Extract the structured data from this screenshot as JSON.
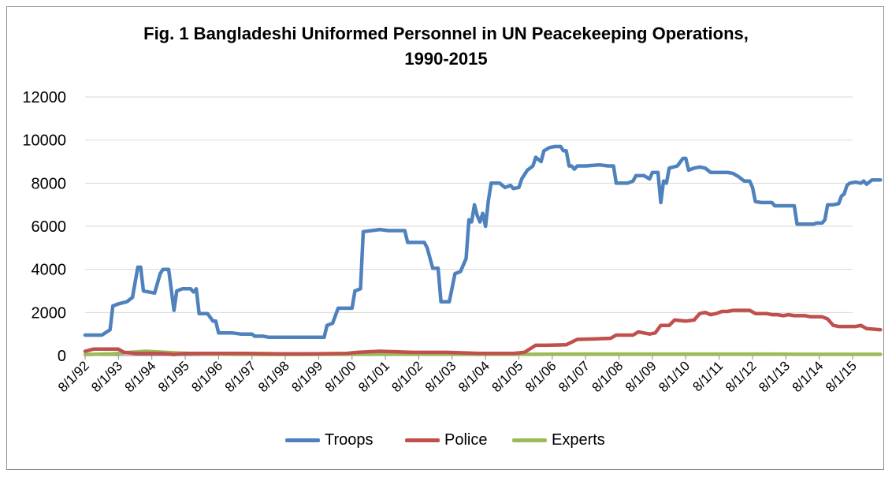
{
  "title_line1": "Fig. 1 Bangladeshi Uniformed Personnel in UN Peacekeeping Operations,",
  "title_line2": "1990-2015",
  "chart_data": {
    "type": "line",
    "title": "Fig. 1 Bangladeshi Uniformed Personnel in UN Peacekeeping Operations, 1990-2015",
    "xlabel": "",
    "ylabel": "",
    "ylim": [
      0,
      12000
    ],
    "yticks": [
      0,
      2000,
      4000,
      6000,
      8000,
      10000,
      12000
    ],
    "ytick_labels": [
      "0",
      "2000",
      "4000",
      "6000",
      "8000",
      "10000",
      "12000"
    ],
    "xlim": [
      "1992-08-01",
      "2015-08-01"
    ],
    "xtick_labels": [
      "8/1/92",
      "8/1/93",
      "8/1/94",
      "8/1/95",
      "8/1/96",
      "8/1/97",
      "8/1/98",
      "8/1/99",
      "8/1/00",
      "8/1/01",
      "8/1/02",
      "8/1/03",
      "8/1/04",
      "8/1/05",
      "8/1/06",
      "8/1/07",
      "8/1/08",
      "8/1/09",
      "8/1/10",
      "8/1/11",
      "8/1/12",
      "8/1/13",
      "8/1/14",
      "8/1/15"
    ],
    "grid": "horizontal",
    "legend_position": "bottom",
    "series": [
      {
        "name": "Troops",
        "color": "#4f81bd",
        "points": [
          [
            "1992-08-01",
            950
          ],
          [
            "1993-02-01",
            950
          ],
          [
            "1993-05-01",
            1200
          ],
          [
            "1993-06-01",
            2300
          ],
          [
            "1993-08-01",
            2400
          ],
          [
            "1993-11-01",
            2500
          ],
          [
            "1994-01-01",
            2700
          ],
          [
            "1994-03-01",
            4100
          ],
          [
            "1994-04-01",
            4100
          ],
          [
            "1994-05-01",
            3000
          ],
          [
            "1994-07-01",
            2950
          ],
          [
            "1994-09-01",
            2900
          ],
          [
            "1994-11-01",
            3800
          ],
          [
            "1994-12-01",
            4000
          ],
          [
            "1995-02-01",
            4000
          ],
          [
            "1995-04-01",
            2100
          ],
          [
            "1995-05-01",
            3000
          ],
          [
            "1995-07-01",
            3100
          ],
          [
            "1995-10-01",
            3100
          ],
          [
            "1995-11-01",
            2950
          ],
          [
            "1995-12-01",
            3100
          ],
          [
            "1996-01-01",
            1950
          ],
          [
            "1996-04-01",
            1950
          ],
          [
            "1996-06-01",
            1600
          ],
          [
            "1996-07-01",
            1600
          ],
          [
            "1996-08-01",
            1050
          ],
          [
            "1997-01-01",
            1050
          ],
          [
            "1997-04-01",
            1000
          ],
          [
            "1997-08-01",
            1000
          ],
          [
            "1997-09-01",
            900
          ],
          [
            "1997-12-01",
            900
          ],
          [
            "1998-02-01",
            850
          ],
          [
            "1998-06-01",
            850
          ],
          [
            "1998-11-01",
            850
          ],
          [
            "1999-08-01",
            850
          ],
          [
            "1999-10-01",
            850
          ],
          [
            "1999-11-01",
            1400
          ],
          [
            "2000-01-01",
            1500
          ],
          [
            "2000-03-01",
            2200
          ],
          [
            "2000-06-01",
            2200
          ],
          [
            "2000-08-01",
            2200
          ],
          [
            "2000-09-01",
            3000
          ],
          [
            "2000-11-01",
            3100
          ],
          [
            "2000-12-01",
            5750
          ],
          [
            "2001-03-01",
            5800
          ],
          [
            "2001-06-01",
            5850
          ],
          [
            "2001-09-01",
            5800
          ],
          [
            "2002-01-01",
            5800
          ],
          [
            "2002-03-01",
            5800
          ],
          [
            "2002-04-01",
            5250
          ],
          [
            "2002-08-01",
            5250
          ],
          [
            "2002-10-01",
            5250
          ],
          [
            "2002-11-01",
            5000
          ],
          [
            "2003-01-01",
            4050
          ],
          [
            "2003-03-01",
            4050
          ],
          [
            "2003-04-01",
            2500
          ],
          [
            "2003-06-01",
            2500
          ],
          [
            "2003-07-01",
            2500
          ],
          [
            "2003-09-01",
            3800
          ],
          [
            "2003-11-01",
            3900
          ],
          [
            "2004-01-01",
            4500
          ],
          [
            "2004-02-01",
            6300
          ],
          [
            "2004-03-01",
            6200
          ],
          [
            "2004-04-01",
            7000
          ],
          [
            "2004-05-01",
            6500
          ],
          [
            "2004-06-01",
            6200
          ],
          [
            "2004-07-01",
            6600
          ],
          [
            "2004-08-01",
            6000
          ],
          [
            "2004-09-01",
            7200
          ],
          [
            "2004-10-01",
            8000
          ],
          [
            "2005-01-01",
            8000
          ],
          [
            "2005-03-01",
            7800
          ],
          [
            "2005-05-01",
            7900
          ],
          [
            "2005-06-01",
            7750
          ],
          [
            "2005-08-01",
            7800
          ],
          [
            "2005-09-01",
            8200
          ],
          [
            "2005-11-01",
            8600
          ],
          [
            "2006-01-01",
            8800
          ],
          [
            "2006-02-01",
            9200
          ],
          [
            "2006-04-01",
            9000
          ],
          [
            "2006-05-01",
            9500
          ],
          [
            "2006-07-01",
            9650
          ],
          [
            "2006-09-01",
            9700
          ],
          [
            "2006-11-01",
            9700
          ],
          [
            "2006-12-01",
            9500
          ],
          [
            "2007-01-01",
            9500
          ],
          [
            "2007-02-01",
            8800
          ],
          [
            "2007-03-01",
            8800
          ],
          [
            "2007-04-01",
            8650
          ],
          [
            "2007-05-01",
            8800
          ],
          [
            "2007-08-01",
            8800
          ],
          [
            "2008-01-01",
            8850
          ],
          [
            "2008-04-01",
            8800
          ],
          [
            "2008-06-01",
            8800
          ],
          [
            "2008-07-01",
            8000
          ],
          [
            "2008-09-01",
            8000
          ],
          [
            "2008-11-01",
            8000
          ],
          [
            "2009-01-01",
            8100
          ],
          [
            "2009-02-01",
            8350
          ],
          [
            "2009-05-01",
            8350
          ],
          [
            "2009-07-01",
            8200
          ],
          [
            "2009-08-01",
            8500
          ],
          [
            "2009-10-01",
            8500
          ],
          [
            "2009-11-01",
            7100
          ],
          [
            "2009-12-01",
            8100
          ],
          [
            "2010-01-01",
            8000
          ],
          [
            "2010-02-01",
            8700
          ],
          [
            "2010-05-01",
            8800
          ],
          [
            "2010-07-01",
            9150
          ],
          [
            "2010-08-01",
            9150
          ],
          [
            "2010-09-01",
            8600
          ],
          [
            "2010-11-01",
            8700
          ],
          [
            "2011-01-01",
            8750
          ],
          [
            "2011-03-01",
            8700
          ],
          [
            "2011-05-01",
            8500
          ],
          [
            "2011-07-01",
            8500
          ],
          [
            "2011-09-01",
            8500
          ],
          [
            "2011-11-01",
            8500
          ],
          [
            "2012-01-01",
            8450
          ],
          [
            "2012-03-01",
            8300
          ],
          [
            "2012-05-01",
            8100
          ],
          [
            "2012-07-01",
            8100
          ],
          [
            "2012-08-01",
            7800
          ],
          [
            "2012-09-01",
            7150
          ],
          [
            "2012-11-01",
            7100
          ],
          [
            "2013-01-01",
            7100
          ],
          [
            "2013-03-01",
            7100
          ],
          [
            "2013-04-01",
            6950
          ],
          [
            "2013-06-01",
            6950
          ],
          [
            "2013-09-01",
            6950
          ],
          [
            "2013-11-01",
            6950
          ],
          [
            "2013-12-01",
            6100
          ],
          [
            "2014-03-01",
            6100
          ],
          [
            "2014-06-01",
            6100
          ],
          [
            "2014-07-01",
            6150
          ],
          [
            "2014-09-01",
            6150
          ],
          [
            "2014-10-01",
            6300
          ],
          [
            "2014-11-01",
            7000
          ],
          [
            "2015-01-01",
            7000
          ],
          [
            "2015-03-01",
            7050
          ],
          [
            "2015-04-01",
            7400
          ],
          [
            "2015-05-01",
            7500
          ],
          [
            "2015-06-01",
            7900
          ],
          [
            "2015-07-01",
            8000
          ],
          [
            "2015-09-01",
            8050
          ],
          [
            "2015-11-01",
            8000
          ],
          [
            "2015-12-01",
            8100
          ],
          [
            "2016-01-01",
            7950
          ],
          [
            "2016-03-01",
            8150
          ],
          [
            "2016-06-01",
            8150
          ]
        ]
      },
      {
        "name": "Police",
        "color": "#c0504d",
        "points": [
          [
            "1992-08-01",
            200
          ],
          [
            "1992-11-01",
            300
          ],
          [
            "1993-05-01",
            300
          ],
          [
            "1993-08-01",
            300
          ],
          [
            "1993-10-01",
            150
          ],
          [
            "1994-02-01",
            100
          ],
          [
            "1994-06-01",
            100
          ],
          [
            "1994-12-01",
            100
          ],
          [
            "1995-04-01",
            50
          ],
          [
            "1995-08-01",
            100
          ],
          [
            "1995-12-01",
            100
          ],
          [
            "1996-06-01",
            100
          ],
          [
            "1997-06-01",
            100
          ],
          [
            "1998-06-01",
            80
          ],
          [
            "1999-06-01",
            80
          ],
          [
            "2000-06-01",
            100
          ],
          [
            "2000-10-01",
            150
          ],
          [
            "2001-06-01",
            200
          ],
          [
            "2002-06-01",
            150
          ],
          [
            "2003-06-01",
            150
          ],
          [
            "2004-06-01",
            100
          ],
          [
            "2005-06-01",
            100
          ],
          [
            "2005-10-01",
            150
          ],
          [
            "2006-02-01",
            480
          ],
          [
            "2006-06-01",
            480
          ],
          [
            "2007-01-01",
            500
          ],
          [
            "2007-05-01",
            750
          ],
          [
            "2007-12-01",
            780
          ],
          [
            "2008-05-01",
            800
          ],
          [
            "2008-07-01",
            950
          ],
          [
            "2009-01-01",
            950
          ],
          [
            "2009-03-01",
            1100
          ],
          [
            "2009-05-01",
            1050
          ],
          [
            "2009-07-01",
            1000
          ],
          [
            "2009-09-01",
            1050
          ],
          [
            "2009-11-01",
            1400
          ],
          [
            "2010-02-01",
            1400
          ],
          [
            "2010-04-01",
            1650
          ],
          [
            "2010-08-01",
            1600
          ],
          [
            "2010-11-01",
            1650
          ],
          [
            "2011-01-01",
            1950
          ],
          [
            "2011-03-01",
            2000
          ],
          [
            "2011-05-01",
            1900
          ],
          [
            "2011-07-01",
            1950
          ],
          [
            "2011-09-01",
            2050
          ],
          [
            "2011-11-01",
            2050
          ],
          [
            "2012-01-01",
            2100
          ],
          [
            "2012-03-01",
            2100
          ],
          [
            "2012-05-01",
            2100
          ],
          [
            "2012-07-01",
            2100
          ],
          [
            "2012-09-01",
            1950
          ],
          [
            "2012-11-01",
            1950
          ],
          [
            "2013-01-01",
            1950
          ],
          [
            "2013-03-01",
            1900
          ],
          [
            "2013-05-01",
            1900
          ],
          [
            "2013-07-01",
            1850
          ],
          [
            "2013-09-01",
            1900
          ],
          [
            "2013-11-01",
            1850
          ],
          [
            "2014-01-01",
            1850
          ],
          [
            "2014-03-01",
            1850
          ],
          [
            "2014-05-01",
            1800
          ],
          [
            "2014-07-01",
            1800
          ],
          [
            "2014-09-01",
            1800
          ],
          [
            "2014-11-01",
            1700
          ],
          [
            "2015-01-01",
            1400
          ],
          [
            "2015-03-01",
            1350
          ],
          [
            "2015-06-01",
            1350
          ],
          [
            "2015-09-01",
            1350
          ],
          [
            "2015-11-01",
            1400
          ],
          [
            "2016-01-01",
            1250
          ],
          [
            "2016-06-01",
            1200
          ]
        ]
      },
      {
        "name": "Experts",
        "color": "#9bbb59",
        "points": [
          [
            "1992-08-01",
            50
          ],
          [
            "1993-06-01",
            80
          ],
          [
            "1993-12-01",
            150
          ],
          [
            "1994-06-01",
            200
          ],
          [
            "1995-01-01",
            150
          ],
          [
            "1995-06-01",
            120
          ],
          [
            "1996-01-01",
            80
          ],
          [
            "1997-01-01",
            60
          ],
          [
            "1998-01-01",
            50
          ],
          [
            "1999-01-01",
            50
          ],
          [
            "2000-01-01",
            60
          ],
          [
            "2001-01-01",
            60
          ],
          [
            "2002-01-01",
            60
          ],
          [
            "2003-01-01",
            60
          ],
          [
            "2004-01-01",
            60
          ],
          [
            "2005-01-01",
            60
          ],
          [
            "2006-01-01",
            60
          ],
          [
            "2007-01-01",
            70
          ],
          [
            "2008-01-01",
            70
          ],
          [
            "2009-01-01",
            70
          ],
          [
            "2010-01-01",
            70
          ],
          [
            "2011-01-01",
            70
          ],
          [
            "2012-01-01",
            70
          ],
          [
            "2013-01-01",
            70
          ],
          [
            "2014-01-01",
            60
          ],
          [
            "2015-01-01",
            60
          ],
          [
            "2016-06-01",
            60
          ]
        ]
      }
    ]
  }
}
